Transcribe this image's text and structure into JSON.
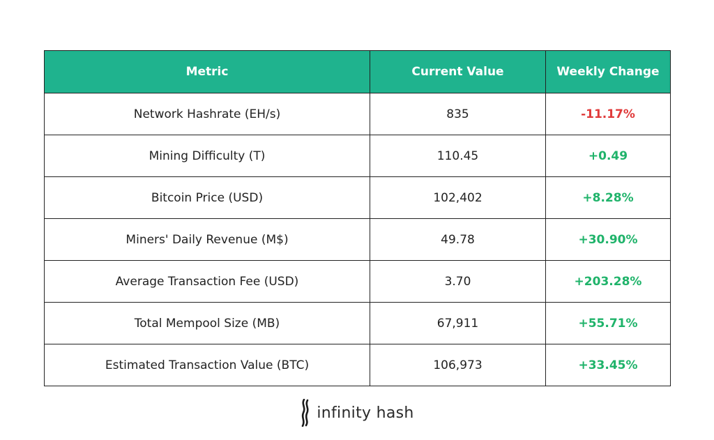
{
  "chart_data": {
    "type": "table",
    "columns": [
      "Metric",
      "Current Value",
      "Weekly Change"
    ],
    "rows": [
      {
        "metric": "Network Hashrate (EH/s)",
        "value": "835",
        "change": "-11.17%",
        "direction": "neg"
      },
      {
        "metric": "Mining Difficulty (T)",
        "value": "110.45",
        "change": "+0.49",
        "direction": "pos"
      },
      {
        "metric": "Bitcoin Price (USD)",
        "value": "102,402",
        "change": "+8.28%",
        "direction": "pos"
      },
      {
        "metric": "Miners' Daily Revenue (M$)",
        "value": "49.78",
        "change": "+30.90%",
        "direction": "pos"
      },
      {
        "metric": "Average Transaction Fee (USD)",
        "value": "3.70",
        "change": "+203.28%",
        "direction": "pos"
      },
      {
        "metric": "Total Mempool Size (MB)",
        "value": "67,911",
        "change": "+55.71%",
        "direction": "pos"
      },
      {
        "metric": "Estimated Transaction Value (BTC)",
        "value": "106,973",
        "change": "+33.45%",
        "direction": "pos"
      }
    ]
  },
  "colors": {
    "header_bg": "#1fb38e",
    "positive": "#1fb36a",
    "negative": "#e03a3a"
  },
  "logo": {
    "text": "infinity hash",
    "icon": "infinity-hash-logo-icon"
  }
}
